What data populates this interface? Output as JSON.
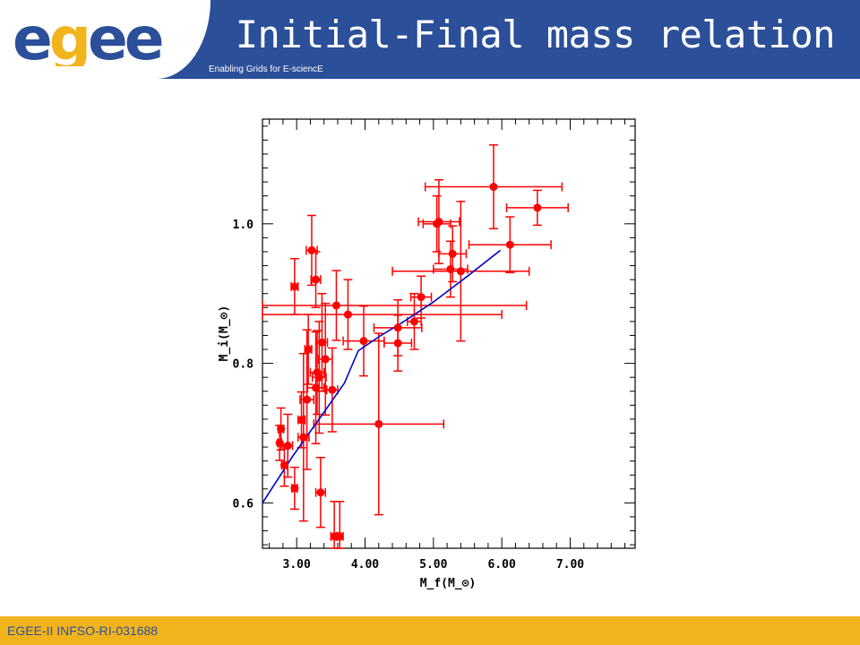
{
  "header": {
    "logo_text": "egee",
    "tagline": "Enabling Grids for E-sciencE",
    "title": "Initial-Final mass relation"
  },
  "footer": {
    "text": "EGEE-II INFSO-RI-031688"
  },
  "colors": {
    "header_bg": "#2b4f99",
    "footer_bg": "#f2b41c",
    "logo_blue": "#2b4f99",
    "logo_yellow": "#f2b41c",
    "points": "#ff0000",
    "fit_line": "#0000cc"
  },
  "chart_data": {
    "type": "scatter",
    "title": "",
    "xlabel": "M_f(M_⊙)",
    "ylabel": "M_i(M_⊙)",
    "xlim": [
      2.5,
      7.95
    ],
    "ylim": [
      0.535,
      1.15
    ],
    "x_ticks": [
      3.0,
      4.0,
      5.0,
      6.0,
      7.0
    ],
    "x_tick_labels": [
      "3.00",
      "4.00",
      "5.00",
      "6.00",
      "7.00"
    ],
    "y_ticks": [
      0.6,
      0.8,
      1.0
    ],
    "y_tick_labels": [
      "0.6",
      "0.8",
      "1.0"
    ],
    "grid": false,
    "points": [
      {
        "x": 2.75,
        "y": 0.686,
        "xerr": 0.03,
        "yerr": 0.025
      },
      {
        "x": 2.77,
        "y": 0.706,
        "xerr": 0.04,
        "yerr": 0.03
      },
      {
        "x": 2.82,
        "y": 0.654,
        "xerr": 0.04,
        "yerr": 0.03
      },
      {
        "x": 2.87,
        "y": 0.682,
        "xerr": 0.07,
        "yerr": 0.045
      },
      {
        "x": 2.97,
        "y": 0.91,
        "xerr": 0.05,
        "yerr": 0.04
      },
      {
        "x": 2.97,
        "y": 0.621,
        "xerr": 0.04,
        "yerr": 0.03
      },
      {
        "x": 3.07,
        "y": 0.719,
        "xerr": 0.05,
        "yerr": 0.04
      },
      {
        "x": 3.1,
        "y": 0.694,
        "xerr": 0.08,
        "yerr": 0.12
      },
      {
        "x": 3.15,
        "y": 0.748,
        "xerr": 0.1,
        "yerr": 0.1
      },
      {
        "x": 3.17,
        "y": 0.82,
        "xerr": 0.05,
        "yerr": 0.05
      },
      {
        "x": 3.22,
        "y": 0.962,
        "xerr": 0.08,
        "yerr": 0.05
      },
      {
        "x": 3.28,
        "y": 0.765,
        "xerr": 0.12,
        "yerr": 0.08
      },
      {
        "x": 3.28,
        "y": 0.92,
        "xerr": 0.07,
        "yerr": 0.04
      },
      {
        "x": 3.3,
        "y": 0.787,
        "xerr": 0.1,
        "yerr": 0.06
      },
      {
        "x": 3.33,
        "y": 0.78,
        "xerr": 0.1,
        "yerr": 0.08
      },
      {
        "x": 3.35,
        "y": 0.615,
        "xerr": 0.07,
        "yerr": 0.05
      },
      {
        "x": 3.37,
        "y": 0.83,
        "xerr": 0.08,
        "yerr": 0.07
      },
      {
        "x": 3.42,
        "y": 0.806,
        "xerr": 0.1,
        "yerr": 0.08
      },
      {
        "x": 3.52,
        "y": 0.762,
        "xerr": 0.08,
        "yerr": 0.06
      },
      {
        "x": 3.55,
        "y": 0.552,
        "xerr": 0.05,
        "yerr": 0.05
      },
      {
        "x": 3.58,
        "y": 0.883,
        "xerr": 2.78,
        "yerr": 0.05
      },
      {
        "x": 3.63,
        "y": 0.552,
        "xerr": 0.05,
        "yerr": 0.05
      },
      {
        "x": 3.75,
        "y": 0.87,
        "xerr": 2.25,
        "yerr": 0.05
      },
      {
        "x": 3.98,
        "y": 0.832,
        "xerr": 0.3,
        "yerr": 0.05
      },
      {
        "x": 4.2,
        "y": 0.713,
        "xerr": 0.95,
        "yerr": 0.13
      },
      {
        "x": 4.48,
        "y": 0.829,
        "xerr": 0.2,
        "yerr": 0.04
      },
      {
        "x": 4.48,
        "y": 0.851,
        "xerr": 0.35,
        "yerr": 0.04
      },
      {
        "x": 4.72,
        "y": 0.86,
        "xerr": 0.1,
        "yerr": 0.04
      },
      {
        "x": 4.82,
        "y": 0.895,
        "xerr": 0.15,
        "yerr": 0.03
      },
      {
        "x": 5.05,
        "y": 1.0,
        "xerr": 0.2,
        "yerr": 0.04
      },
      {
        "x": 5.08,
        "y": 1.003,
        "xerr": 0.3,
        "yerr": 0.06
      },
      {
        "x": 5.25,
        "y": 0.935,
        "xerr": 0.25,
        "yerr": 0.04
      },
      {
        "x": 5.28,
        "y": 0.957,
        "xerr": 0.2,
        "yerr": 0.04
      },
      {
        "x": 5.4,
        "y": 0.932,
        "xerr": 1.0,
        "yerr": 0.1
      },
      {
        "x": 5.88,
        "y": 1.053,
        "xerr": 1.0,
        "yerr": 0.06
      },
      {
        "x": 6.12,
        "y": 0.97,
        "xerr": 0.6,
        "yerr": 0.04
      },
      {
        "x": 6.52,
        "y": 1.023,
        "xerr": 0.45,
        "yerr": 0.025
      }
    ],
    "fit_line": [
      {
        "x": 2.5,
        "y": 0.6
      },
      {
        "x": 2.95,
        "y": 0.668
      },
      {
        "x": 3.4,
        "y": 0.73
      },
      {
        "x": 3.7,
        "y": 0.772
      },
      {
        "x": 3.9,
        "y": 0.818
      },
      {
        "x": 4.2,
        "y": 0.838
      },
      {
        "x": 4.6,
        "y": 0.862
      },
      {
        "x": 5.0,
        "y": 0.888
      },
      {
        "x": 5.5,
        "y": 0.925
      },
      {
        "x": 5.98,
        "y": 0.962
      }
    ]
  }
}
